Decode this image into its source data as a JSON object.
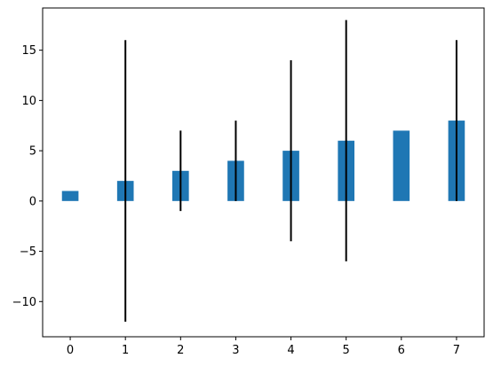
{
  "chart_data": {
    "type": "bar",
    "categories": [
      "0",
      "1",
      "2",
      "3",
      "4",
      "5",
      "6",
      "7"
    ],
    "x": [
      0,
      1,
      2,
      3,
      4,
      5,
      6,
      7
    ],
    "values": [
      1,
      2,
      3,
      4,
      5,
      6,
      7,
      8
    ],
    "error_low": [
      null,
      -12,
      -1,
      0,
      -4,
      -6,
      null,
      0
    ],
    "error_high": [
      null,
      16,
      7,
      8,
      14,
      18,
      null,
      16
    ],
    "xlim": [
      -0.5,
      7.5
    ],
    "ylim": [
      -13.5,
      19.2
    ],
    "xticks": [
      0,
      1,
      2,
      3,
      4,
      5,
      6,
      7
    ],
    "yticks": [
      -10,
      -5,
      0,
      5,
      10,
      15
    ],
    "ytick_labels": [
      "−10",
      "−5",
      "0",
      "5",
      "10",
      "15"
    ],
    "title": "",
    "xlabel": "",
    "ylabel": "",
    "grid": false,
    "bar_color": "#1f77b4",
    "error_color": "#000000"
  }
}
